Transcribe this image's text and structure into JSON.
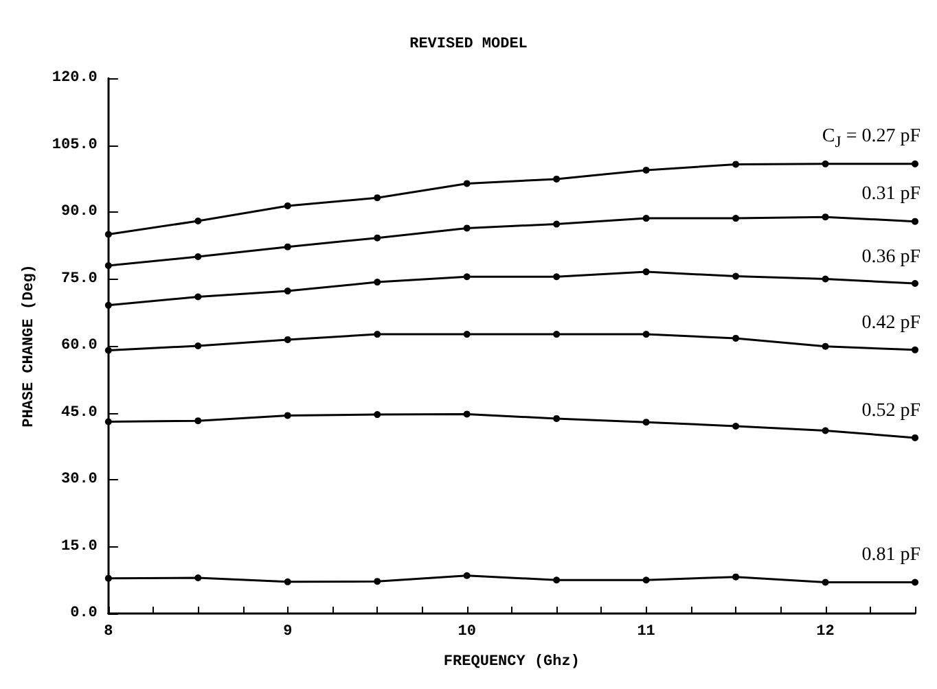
{
  "chart_data": {
    "type": "line",
    "title": "REVISED MODEL",
    "xlabel": "FREQUENCY (Ghz)",
    "ylabel": "PHASE CHANGE (Deg)",
    "x": [
      8,
      8.5,
      9,
      9.5,
      10,
      10.5,
      11,
      11.5,
      12,
      12.5
    ],
    "series": [
      {
        "name": "C$_{J}$ = 0.27 pF",
        "color": "#000000",
        "values": [
          85.0,
          88.0,
          91.4,
          93.2,
          96.4,
          97.4,
          99.4,
          100.7,
          100.8,
          100.8
        ]
      },
      {
        "name": "0.31 pF",
        "color": "#000000",
        "values": [
          78.0,
          80.0,
          82.2,
          84.2,
          86.4,
          87.3,
          88.6,
          88.6,
          88.9,
          87.9
        ]
      },
      {
        "name": "0.36 pF",
        "color": "#000000",
        "values": [
          69.1,
          71.0,
          72.3,
          74.3,
          75.5,
          75.5,
          76.6,
          75.6,
          75.0,
          74.0
        ]
      },
      {
        "name": "0.42 pF",
        "color": "#000000",
        "values": [
          59.0,
          60.0,
          61.4,
          62.6,
          62.6,
          62.6,
          62.6,
          61.7,
          59.9,
          59.1
        ]
      },
      {
        "name": "0.52 pF",
        "color": "#000000",
        "values": [
          43.0,
          43.2,
          44.4,
          44.6,
          44.7,
          43.7,
          42.9,
          42.0,
          41.0,
          39.4
        ]
      },
      {
        "name": "0.81 pF",
        "color": "#000000",
        "values": [
          7.9,
          8.0,
          7.1,
          7.2,
          8.5,
          7.5,
          7.5,
          8.2,
          7.0,
          7.0
        ]
      }
    ],
    "xlim": [
      8,
      12.5
    ],
    "xticks": [
      8,
      {
        "value": 8.25,
        "label": null
      },
      {
        "value": 8.5,
        "label": null
      },
      {
        "value": 8.75,
        "label": null
      },
      9,
      {
        "value": 9.25,
        "label": null
      },
      {
        "value": 9.5,
        "label": null
      },
      {
        "value": 9.75,
        "label": null
      },
      10,
      {
        "value": 10.25,
        "label": null
      },
      {
        "value": 10.5,
        "label": null
      },
      {
        "value": 10.75,
        "label": null
      },
      11,
      {
        "value": 11.25,
        "label": null
      },
      {
        "value": 11.5,
        "label": null
      },
      {
        "value": 11.75,
        "label": null
      },
      12,
      {
        "value": 12.25,
        "label": null
      },
      {
        "value": 12.5,
        "label": null
      }
    ],
    "ylim": [
      0,
      120
    ],
    "yticks": [
      {
        "value": 0,
        "label": "0.0"
      },
      {
        "value": 15,
        "label": "15.0"
      },
      {
        "value": 30,
        "label": "30.0"
      },
      {
        "value": 45,
        "label": "45.0"
      },
      {
        "value": 60,
        "label": "60.0"
      },
      {
        "value": 75,
        "label": "75.0"
      },
      {
        "value": 90,
        "label": "90.0"
      },
      {
        "value": 105,
        "label": "105.0"
      },
      {
        "value": 120,
        "label": "120.0"
      }
    ],
    "grid": false,
    "legend": false,
    "marker": "circle",
    "line_style": "solid"
  }
}
